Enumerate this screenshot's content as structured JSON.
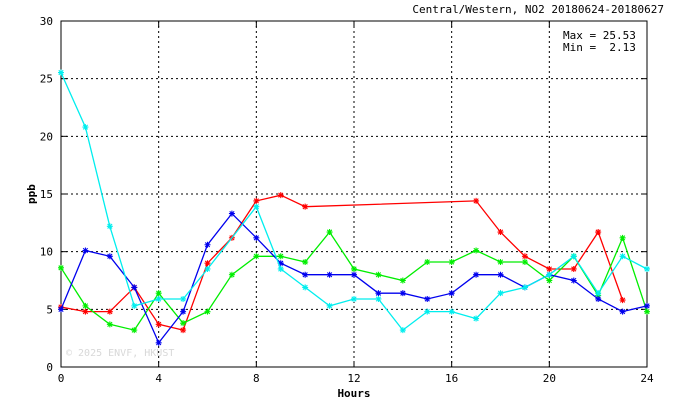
{
  "chart_data": {
    "type": "line",
    "title": "Central/Western, NO2 20180624-20180627",
    "xlabel": "Hours",
    "ylabel": "ppb",
    "xlim": [
      0,
      24
    ],
    "ylim": [
      0,
      30
    ],
    "xticks": [
      0,
      4,
      8,
      12,
      16,
      20,
      24
    ],
    "yticks": [
      0,
      5,
      10,
      15,
      20,
      25,
      30
    ],
    "x_tick_labels": [
      "0",
      "4",
      "8",
      "12",
      "16",
      "20",
      "24"
    ],
    "y_tick_labels": [
      "0",
      "5",
      "10",
      "15",
      "20",
      "25",
      "30"
    ],
    "grid": true,
    "stats": {
      "max_label": "Max = 25.53",
      "min_label": "Min =  2.13"
    },
    "watermark": "© 2025 ENVF, HKUST",
    "series": [
      {
        "color": "#ff0000",
        "points": [
          [
            0,
            5.2
          ],
          [
            1,
            4.8
          ],
          [
            2,
            4.8
          ],
          [
            3,
            6.9
          ],
          [
            4,
            3.7
          ],
          [
            5,
            3.2
          ],
          [
            6,
            9.0
          ],
          [
            7,
            11.2
          ],
          [
            8,
            14.4
          ],
          [
            9,
            14.9
          ],
          [
            10,
            13.9
          ],
          [
            17,
            14.4
          ],
          [
            18,
            11.7
          ],
          [
            19,
            9.6
          ],
          [
            20,
            8.5
          ],
          [
            21,
            8.5
          ],
          [
            22,
            11.7
          ],
          [
            23,
            5.8
          ]
        ]
      },
      {
        "color": "#00ee00",
        "points": [
          [
            0,
            8.6
          ],
          [
            1,
            5.3
          ],
          [
            2,
            3.7
          ],
          [
            3,
            3.2
          ],
          [
            4,
            6.4
          ],
          [
            5,
            3.8
          ],
          [
            6,
            4.8
          ],
          [
            7,
            8.0
          ],
          [
            8,
            9.6
          ],
          [
            9,
            9.6
          ],
          [
            10,
            9.1
          ],
          [
            11,
            11.7
          ],
          [
            12,
            8.5
          ],
          [
            13,
            8.0
          ],
          [
            14,
            7.5
          ],
          [
            15,
            9.1
          ],
          [
            16,
            9.1
          ],
          [
            17,
            10.1
          ],
          [
            18,
            9.1
          ],
          [
            19,
            9.1
          ],
          [
            20,
            7.5
          ],
          [
            21,
            9.6
          ],
          [
            22,
            6.2
          ],
          [
            23,
            11.2
          ],
          [
            24,
            4.8
          ]
        ]
      },
      {
        "color": "#0000ee",
        "points": [
          [
            0,
            5.0
          ],
          [
            1,
            10.1
          ],
          [
            2,
            9.6
          ],
          [
            3,
            6.9
          ],
          [
            4,
            2.1
          ],
          [
            5,
            4.8
          ],
          [
            6,
            10.6
          ],
          [
            7,
            13.3
          ],
          [
            8,
            11.2
          ],
          [
            9,
            9.0
          ],
          [
            10,
            8.0
          ],
          [
            11,
            8.0
          ],
          [
            12,
            8.0
          ],
          [
            13,
            6.4
          ],
          [
            14,
            6.4
          ],
          [
            15,
            5.9
          ],
          [
            16,
            6.4
          ],
          [
            17,
            8.0
          ],
          [
            18,
            8.0
          ],
          [
            19,
            6.9
          ],
          [
            20,
            8.0
          ],
          [
            21,
            7.5
          ],
          [
            22,
            5.9
          ],
          [
            23,
            4.8
          ],
          [
            24,
            5.3
          ]
        ]
      },
      {
        "color": "#00eeee",
        "points": [
          [
            0,
            25.53
          ],
          [
            1,
            20.8
          ],
          [
            2,
            12.2
          ],
          [
            3,
            5.3
          ],
          [
            4,
            5.9
          ],
          [
            5,
            5.9
          ],
          [
            6,
            8.5
          ],
          [
            7,
            null
          ],
          [
            8,
            13.9
          ],
          [
            9,
            8.5
          ],
          [
            10,
            6.9
          ],
          [
            11,
            5.3
          ],
          [
            12,
            5.9
          ],
          [
            13,
            5.9
          ],
          [
            14,
            3.2
          ],
          [
            15,
            4.8
          ],
          [
            16,
            4.8
          ],
          [
            17,
            4.2
          ],
          [
            18,
            6.4
          ],
          [
            19,
            6.9
          ],
          [
            20,
            8.0
          ],
          [
            21,
            9.6
          ],
          [
            22,
            6.4
          ],
          [
            23,
            9.6
          ],
          [
            24,
            8.5
          ]
        ]
      }
    ]
  }
}
